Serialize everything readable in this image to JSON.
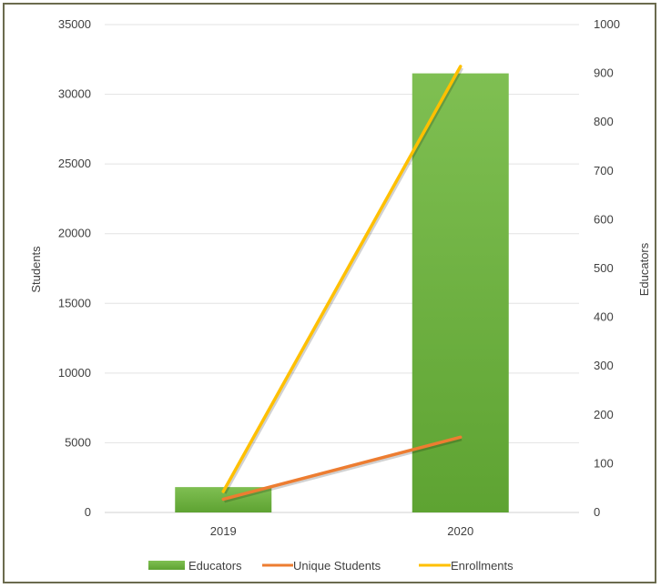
{
  "chart_data": {
    "type": "bar",
    "categories": [
      "2019",
      "2020"
    ],
    "series": [
      {
        "name": "Educators",
        "type": "bar",
        "axis": "right",
        "values": [
          52,
          900
        ],
        "color": "#6db33f"
      },
      {
        "name": "Unique Students",
        "type": "line",
        "axis": "left",
        "values": [
          950,
          5400
        ],
        "color": "#ed7d31"
      },
      {
        "name": "Enrollments",
        "type": "line",
        "axis": "left",
        "values": [
          1500,
          32000
        ],
        "color": "#ffc000"
      }
    ],
    "ylabel": "Students",
    "y2label": "Educators",
    "ylim": [
      0,
      35000
    ],
    "y2lim": [
      0,
      1000
    ],
    "yticks": [
      "0",
      "5000",
      "10000",
      "15000",
      "20000",
      "25000",
      "30000",
      "35000"
    ],
    "y2ticks": [
      "0",
      "100",
      "200",
      "300",
      "400",
      "500",
      "600",
      "700",
      "800",
      "900",
      "1000"
    ],
    "grid": true,
    "legend_position": "bottom"
  }
}
